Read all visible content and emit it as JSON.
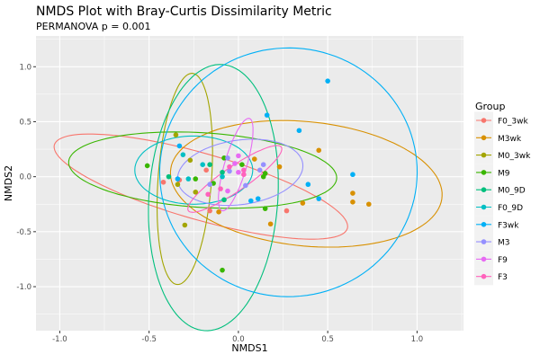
{
  "chart_data": {
    "type": "scatter",
    "title": "NMDS Plot with Bray-Curtis Dissimilarity Metric",
    "subtitle": "PERMANOVA p = 0.001",
    "xlabel": "NMDS1",
    "ylabel": "NMDS2",
    "xlim": [
      -1.133,
      1.26
    ],
    "ylim": [
      -1.4,
      1.28
    ],
    "xticks": [
      -1.0,
      -0.5,
      0.0,
      0.5,
      1.0
    ],
    "xtick_labels": [
      "-1.0",
      "-0.5",
      "0.0",
      "0.5",
      "1.0"
    ],
    "yticks": [
      1.0,
      0.5,
      0.0,
      -0.5,
      -1.0
    ],
    "ytick_labels": [
      "1.0",
      "0.5",
      "0.0",
      "-0.5",
      "-1.0"
    ],
    "grid": true,
    "legend": {
      "title": "Group",
      "placement": "right"
    },
    "series": [
      {
        "name": "F0_3wk",
        "color": "#F8766D",
        "points": [
          [
            -0.42,
            -0.05
          ],
          [
            -0.33,
            -0.03
          ],
          [
            -0.18,
            0.06
          ],
          [
            -0.16,
            -0.31
          ],
          [
            0.27,
            -0.31
          ]
        ],
        "ellipse": {
          "center": [
            -0.21,
            -0.09
          ],
          "u": [
            0.82,
            -0.38
          ],
          "v": [
            -0.05,
            -0.29
          ]
        }
      },
      {
        "name": "M3wk",
        "color": "#D89000",
        "points": [
          [
            0.45,
            0.24
          ],
          [
            0.23,
            0.09
          ],
          [
            0.09,
            0.16
          ],
          [
            0.64,
            -0.15
          ],
          [
            0.64,
            -0.23
          ],
          [
            0.73,
            -0.25
          ],
          [
            0.36,
            -0.24
          ],
          [
            0.18,
            -0.43
          ],
          [
            -0.11,
            -0.32
          ]
        ],
        "ellipse": {
          "center": [
            0.38,
            -0.065
          ],
          "u": [
            0.76,
            -0.08
          ],
          "v": [
            -0.025,
            0.57
          ]
        }
      },
      {
        "name": "M0_3wk",
        "color": "#A3A500",
        "points": [
          [
            -0.35,
            0.38
          ],
          [
            -0.27,
            0.15
          ],
          [
            -0.34,
            -0.07
          ],
          [
            -0.24,
            -0.14
          ],
          [
            -0.3,
            -0.44
          ]
        ],
        "ellipse": {
          "center": [
            -0.3,
            -0.02
          ],
          "u": [
            0.04,
            0.96
          ],
          "v": [
            0.15,
            0
          ]
        }
      },
      {
        "name": "M9",
        "color": "#39B600",
        "points": [
          [
            -0.51,
            0.1
          ],
          [
            -0.24,
            -0.02
          ],
          [
            -0.14,
            -0.06
          ],
          [
            -0.08,
            0.17
          ],
          [
            0.02,
            0.11
          ],
          [
            0.15,
            0.03
          ],
          [
            0.14,
            0.0
          ],
          [
            0.15,
            -0.29
          ],
          [
            -0.09,
            -0.85
          ]
        ],
        "ellipse": {
          "center": [
            -0.2,
            0.06
          ],
          "u": [
            0.75,
            -0.07
          ],
          "v": [
            0,
            -0.34
          ]
        }
      },
      {
        "name": "M0_9D",
        "color": "#00BF7D",
        "points": [
          [
            -0.39,
            0
          ],
          [
            -0.16,
            0.11
          ],
          [
            -0.09,
            0.04
          ],
          [
            -0.08,
            -0.21
          ]
        ],
        "ellipse": {
          "center": [
            -0.14,
            -0.19
          ],
          "u": [
            0.05,
            1.21
          ],
          "v": [
            0.36,
            -0.04
          ]
        }
      },
      {
        "name": "F0_9D",
        "color": "#00BFC4",
        "points": [
          [
            -0.31,
            0.2
          ],
          [
            -0.2,
            0.11
          ],
          [
            -0.28,
            -0.02
          ],
          [
            -0.09,
            0
          ]
        ],
        "ellipse": {
          "center": [
            -0.25,
            0.06
          ],
          "u": [
            0.33,
            0
          ],
          "v": [
            0,
            0.31
          ]
        }
      },
      {
        "name": "F3wk",
        "color": "#00B0F6",
        "points": [
          [
            0.5,
            0.87
          ],
          [
            0.16,
            0.56
          ],
          [
            0.34,
            0.42
          ],
          [
            0.64,
            0.02
          ],
          [
            0.39,
            -0.07
          ],
          [
            0.45,
            -0.2
          ],
          [
            0.11,
            -0.2
          ],
          [
            0.07,
            -0.22
          ],
          [
            -0.33,
            0.28
          ],
          [
            -0.34,
            -0.02
          ]
        ],
        "ellipse": {
          "center": [
            0.28,
            0.04
          ],
          "u": [
            0.72,
            0.05
          ],
          "v": [
            -0.03,
            1.13
          ]
        }
      },
      {
        "name": "M3",
        "color": "#9590FF",
        "points": [
          [
            -0.06,
            0.17
          ],
          [
            -0.05,
            0.05
          ],
          [
            0.12,
            0.06
          ],
          [
            0.14,
            0.11
          ],
          [
            -0.16,
            -0.07
          ],
          [
            0.04,
            -0.08
          ]
        ],
        "ellipse": {
          "center": [
            0.01,
            0.04
          ],
          "u": [
            0.35,
            0.08
          ],
          "v": [
            0.025,
            -0.29
          ]
        }
      },
      {
        "name": "F9",
        "color": "#E76BF3",
        "points": [
          [
            0.0,
            0.19
          ],
          [
            -0.02,
            0.12
          ],
          [
            0.0,
            0.04
          ],
          [
            -0.06,
            -0.13
          ]
        ],
        "ellipse": {
          "center": [
            -0.015,
            0.11
          ],
          "u": [
            0.076,
            0.42
          ],
          "v": [
            0.06,
            -0.025
          ]
        }
      },
      {
        "name": "F3",
        "color": "#FF62BC",
        "points": [
          [
            -0.05,
            0.09
          ],
          [
            0.03,
            0.06
          ],
          [
            0.03,
            0.02
          ],
          [
            -0.1,
            -0.11
          ],
          [
            -0.17,
            -0.16
          ]
        ],
        "ellipse": {
          "center": [
            -0.02,
            -0.02
          ],
          "u": [
            0.26,
            0.29
          ],
          "v": [
            0.04,
            -0.09
          ]
        }
      }
    ]
  }
}
